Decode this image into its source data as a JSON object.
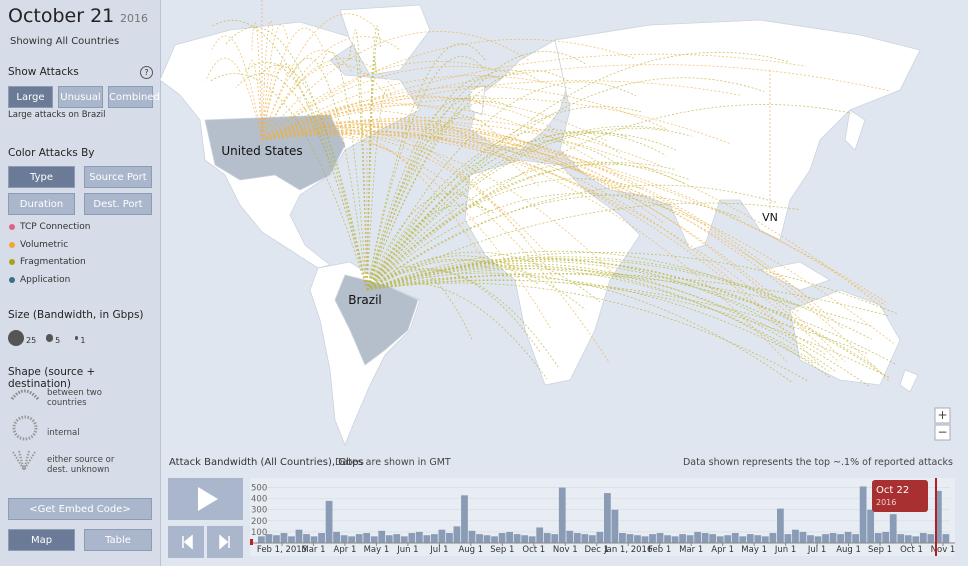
{
  "header": {
    "title": "October 21",
    "year": "2016",
    "subtitle": "Showing All Countries"
  },
  "show_attacks": {
    "label": "Show Attacks",
    "help": "?",
    "buttons": [
      "Large",
      "Unusual",
      "Combined"
    ],
    "selected": 0,
    "note": "Large attacks on Brazil"
  },
  "color_by": {
    "label": "Color Attacks By",
    "buttons": [
      "Type",
      "Source Port",
      "Duration",
      "Dest. Port"
    ],
    "selected": 0,
    "legend": [
      {
        "label": "TCP Connection",
        "color": "#e0608a"
      },
      {
        "label": "Volumetric",
        "color": "#f0a830"
      },
      {
        "label": "Fragmentation",
        "color": "#a9a020"
      },
      {
        "label": "Application",
        "color": "#3a6f8a"
      }
    ]
  },
  "size": {
    "label": "Size (Bandwidth, in Gbps)",
    "items": [
      25,
      5,
      1
    ]
  },
  "shape": {
    "label": "Shape (source + destination)",
    "items": [
      "between two countries",
      "internal",
      "either source or dest. unknown"
    ]
  },
  "footer": {
    "embed": "<Get Embed Code>",
    "views": [
      "Map",
      "Table"
    ],
    "selected": 0
  },
  "map": {
    "labels": [
      "United States",
      "Brazil",
      "VN"
    ],
    "zoom": [
      "+",
      "−"
    ]
  },
  "timeline": {
    "title": "Attack Bandwidth (All Countries), Gbps",
    "tz_note": "Dates are shown in GMT",
    "note": "Data shown represents the top ~.1% of reported attacks",
    "marker": {
      "label": "Oct 22",
      "year": "2016"
    }
  },
  "chart_data": {
    "type": "bar",
    "color": "#8a9bb5",
    "values": [
      60,
      80,
      70,
      90,
      60,
      120,
      80,
      60,
      90,
      380,
      100,
      70,
      60,
      80,
      90,
      60,
      110,
      70,
      80,
      60,
      90,
      100,
      70,
      80,
      120,
      90,
      150,
      430,
      110,
      80,
      70,
      60,
      90,
      100,
      80,
      70,
      60,
      140,
      90,
      80,
      500,
      110,
      90,
      80,
      70,
      100,
      450,
      300,
      90,
      80,
      70,
      60,
      80,
      90,
      70,
      60,
      80,
      70,
      100,
      90,
      80,
      60,
      70,
      90,
      60,
      80,
      70,
      60,
      90,
      310,
      80,
      120,
      100,
      70,
      60,
      80,
      90,
      80,
      100,
      80,
      510,
      300,
      90,
      100,
      260,
      80,
      70,
      60,
      90,
      80,
      470,
      80
    ],
    "ylim": [
      0,
      550
    ],
    "yticks": [
      100,
      200,
      300,
      400,
      500
    ],
    "months": [
      "Feb 1, 2015",
      "Mar 1",
      "Apr 1",
      "May 1",
      "Jun 1",
      "Jul 1",
      "Aug 1",
      "Sep 1",
      "Oct 1",
      "Nov 1",
      "Dec 1",
      "Jan 1, 2016",
      "Feb 1",
      "Mar 1",
      "Apr 1",
      "May 1",
      "Jun 1",
      "Jul 1",
      "Aug 1",
      "Sep 1",
      "Oct 1",
      "Nov 1"
    ]
  }
}
